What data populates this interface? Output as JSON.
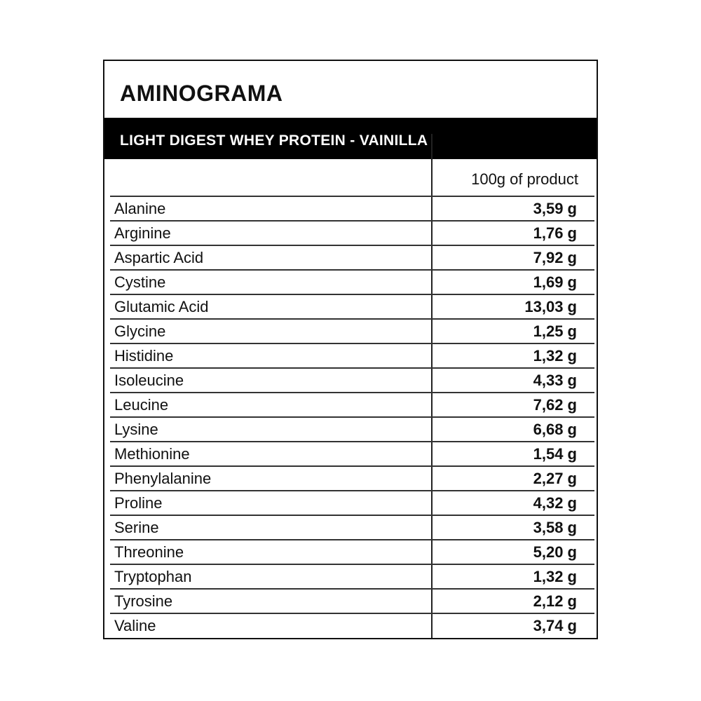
{
  "title": "AMINOGRAMA",
  "subtitle": "LIGHT DIGEST WHEY PROTEIN - VAINILLA",
  "column_header": "100g of product",
  "rows": [
    {
      "name": "Alanine",
      "value": "3,59 g"
    },
    {
      "name": "Arginine",
      "value": "1,76 g"
    },
    {
      "name": "Aspartic Acid",
      "value": "7,92 g"
    },
    {
      "name": "Cystine",
      "value": "1,69 g"
    },
    {
      "name": "Glutamic Acid",
      "value": "13,03 g"
    },
    {
      "name": "Glycine",
      "value": "1,25 g"
    },
    {
      "name": "Histidine",
      "value": "1,32 g"
    },
    {
      "name": "Isoleucine",
      "value": "4,33 g"
    },
    {
      "name": "Leucine",
      "value": "7,62 g"
    },
    {
      "name": "Lysine",
      "value": "6,68 g"
    },
    {
      "name": "Methionine",
      "value": "1,54 g"
    },
    {
      "name": "Phenylalanine",
      "value": "2,27 g"
    },
    {
      "name": "Proline",
      "value": "4,32 g"
    },
    {
      "name": "Serine",
      "value": "3,58 g"
    },
    {
      "name": "Threonine",
      "value": "5,20 g"
    },
    {
      "name": "Tryptophan",
      "value": "1,32 g"
    },
    {
      "name": "Tyrosine",
      "value": "2,12 g"
    },
    {
      "name": "Valine",
      "value": "3,74 g"
    }
  ]
}
